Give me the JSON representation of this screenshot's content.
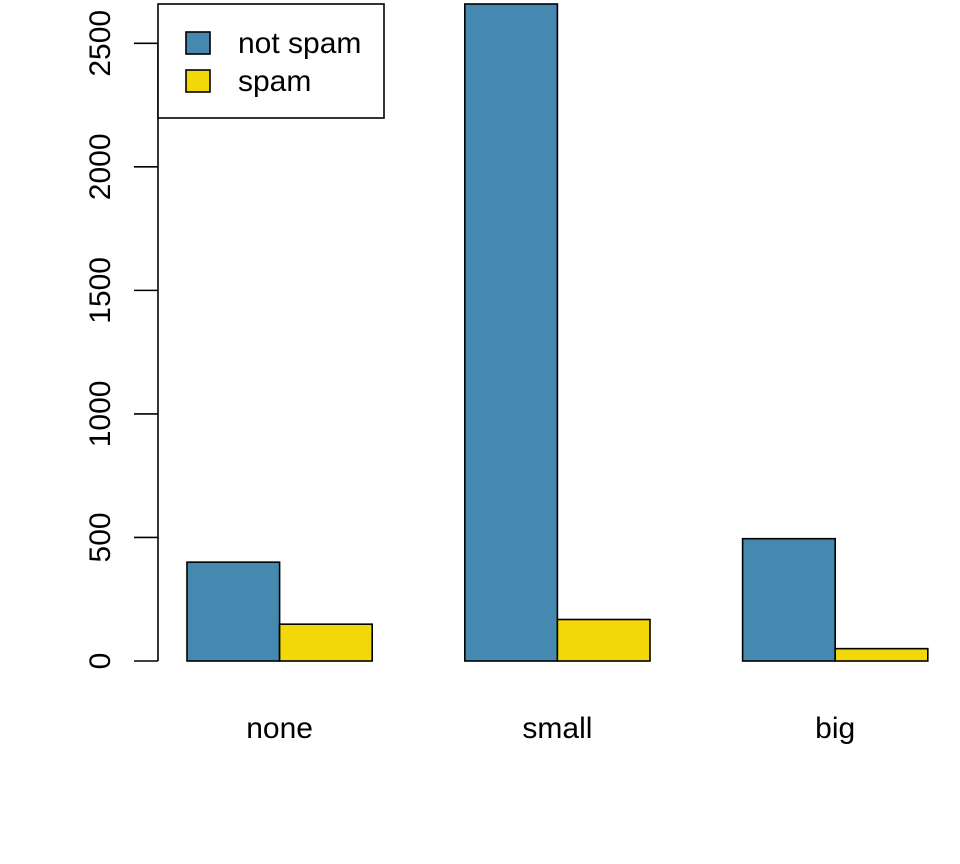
{
  "chart_data": {
    "type": "bar",
    "layout": "grouped",
    "categories": [
      "none",
      "small",
      "big"
    ],
    "series": [
      {
        "name": "not spam",
        "color": "#4589B1",
        "values": [
          400,
          2659,
          495
        ]
      },
      {
        "name": "spam",
        "color": "#F2D709",
        "values": [
          149,
          168,
          50
        ]
      }
    ],
    "y_ticks": [
      0,
      500,
      1000,
      1500,
      2000,
      2500
    ],
    "ylim": [
      0,
      2659
    ],
    "title": "",
    "xlabel": "",
    "ylabel": "",
    "legend": {
      "position": "top-left",
      "boxed": true
    },
    "grid": false
  }
}
